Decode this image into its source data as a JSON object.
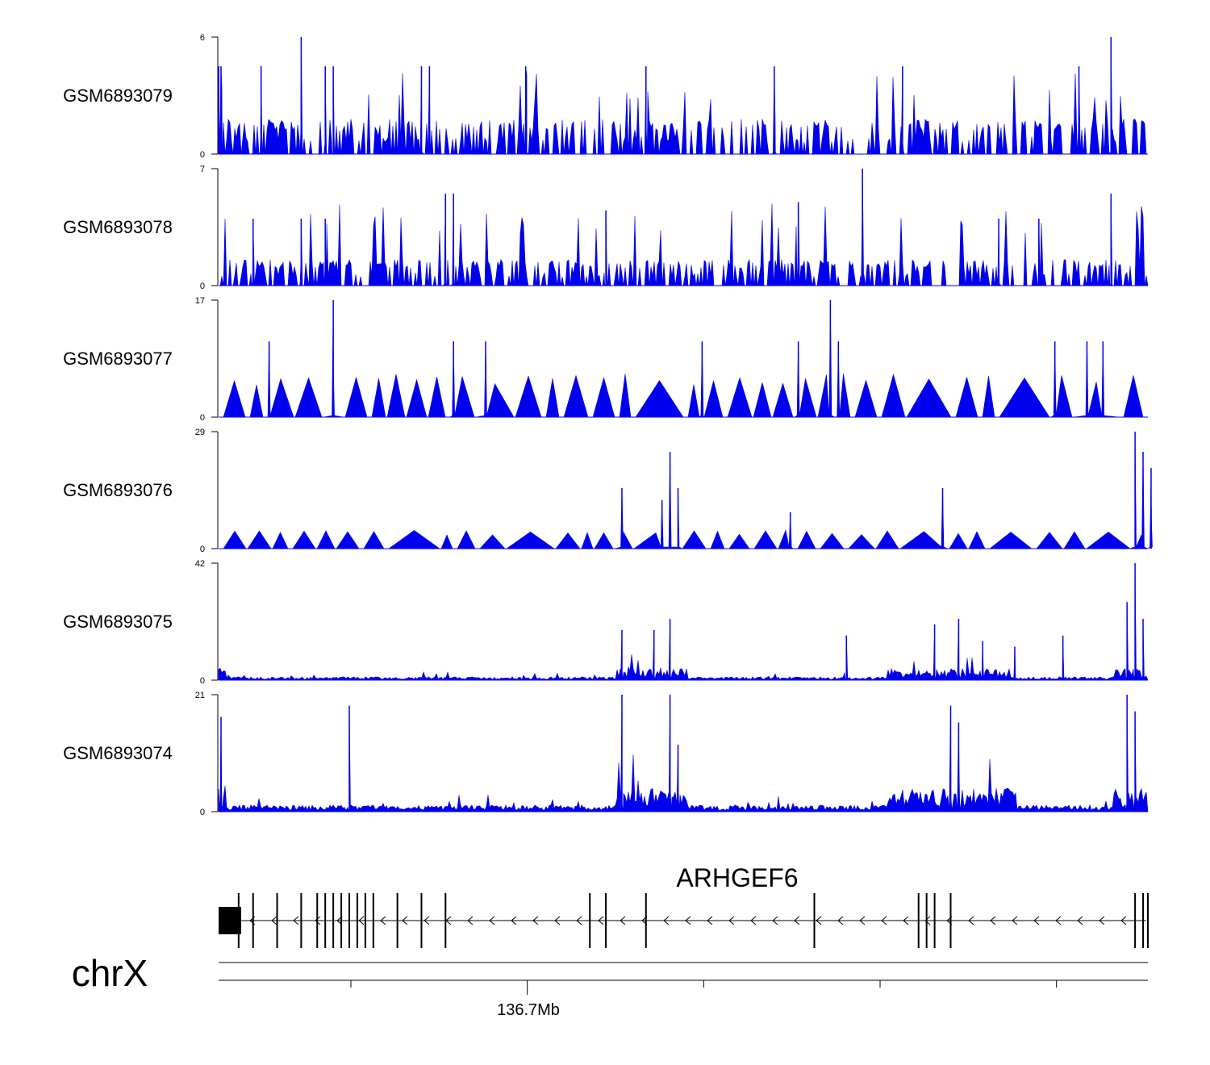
{
  "chart_data": {
    "type": "area",
    "chromosome": "chrX",
    "gene": "ARHGEF6",
    "axis_label": "136.7Mb",
    "x_range_mb": [
      136.6275,
      136.7434
    ],
    "x_ticks_mb": [
      136.644,
      136.666,
      136.688,
      136.71,
      136.732
    ],
    "series_color": "#0000ee",
    "tracks": [
      {
        "name": "GSM6893079",
        "ymax": 6,
        "ymin": 0,
        "pattern": "sparse_spiky",
        "peaks": [
          [
            136.6275,
            4.5
          ],
          [
            136.6275,
            4.5
          ],
          [
            136.6278,
            4.5
          ],
          [
            136.6328,
            4.5
          ],
          [
            136.6378,
            6
          ],
          [
            136.6408,
            4.5
          ],
          [
            136.6418,
            4.5
          ],
          [
            136.6528,
            4.5
          ],
          [
            136.6538,
            4.5
          ],
          [
            136.6658,
            4.5
          ],
          [
            136.6808,
            4.5
          ],
          [
            136.6968,
            4.5
          ],
          [
            136.7128,
            4.5
          ],
          [
            136.7348,
            4.5
          ],
          [
            136.7388,
            6
          ]
        ],
        "base_level": 1.5
      },
      {
        "name": "GSM6893078",
        "ymax": 7,
        "ymin": 0,
        "pattern": "sparse_spiky",
        "peaks": [
          [
            136.6558,
            5.5
          ],
          [
            136.6568,
            5.5
          ],
          [
            136.6758,
            4.5
          ],
          [
            136.6998,
            5
          ],
          [
            136.7078,
            7
          ],
          [
            136.7388,
            5.5
          ],
          [
            136.6318,
            4
          ],
          [
            136.6378,
            4
          ],
          [
            136.6408,
            4
          ],
          [
            136.7248,
            4
          ],
          [
            136.7298,
            4
          ]
        ],
        "base_level": 1.3
      },
      {
        "name": "GSM6893077",
        "ymax": 17,
        "ymin": 0,
        "pattern": "triangles",
        "peaks": [
          [
            136.6338,
            11
          ],
          [
            136.6418,
            17
          ],
          [
            136.6568,
            11
          ],
          [
            136.6608,
            11
          ],
          [
            136.6878,
            11
          ],
          [
            136.6998,
            11
          ],
          [
            136.7038,
            17
          ],
          [
            136.7048,
            11
          ],
          [
            136.7318,
            11
          ],
          [
            136.7358,
            11
          ],
          [
            136.7378,
            11
          ]
        ],
        "base_level": 5.5
      },
      {
        "name": "GSM6893076",
        "ymax": 29,
        "ymin": 0,
        "pattern": "triangles",
        "peaks": [
          [
            136.6778,
            15
          ],
          [
            136.6828,
            12
          ],
          [
            136.6838,
            24
          ],
          [
            136.6848,
            15
          ],
          [
            136.6988,
            9
          ],
          [
            136.7178,
            15
          ],
          [
            136.7418,
            29
          ],
          [
            136.7428,
            24
          ],
          [
            136.7438,
            20
          ],
          [
            136.7438,
            10
          ]
        ],
        "base_level": 4
      },
      {
        "name": "GSM6893075",
        "ymax": 42,
        "ymin": 0,
        "pattern": "dense",
        "peaks": [
          [
            136.6778,
            18
          ],
          [
            136.6818,
            18
          ],
          [
            136.6838,
            22
          ],
          [
            136.7058,
            16
          ],
          [
            136.7168,
            20
          ],
          [
            136.7198,
            22
          ],
          [
            136.7228,
            14
          ],
          [
            136.7268,
            12
          ],
          [
            136.7328,
            16
          ],
          [
            136.7408,
            28
          ],
          [
            136.7418,
            42
          ],
          [
            136.7428,
            22
          ]
        ],
        "base_level": 2
      },
      {
        "name": "GSM6893074",
        "ymax": 21,
        "ymin": 0,
        "pattern": "dense",
        "peaks": [
          [
            136.6278,
            17
          ],
          [
            136.6438,
            19
          ],
          [
            136.6778,
            21
          ],
          [
            136.6838,
            21
          ],
          [
            136.6848,
            12
          ],
          [
            136.7188,
            19
          ],
          [
            136.7198,
            16
          ],
          [
            136.7408,
            21
          ],
          [
            136.7418,
            18
          ]
        ],
        "base_level": 2
      }
    ],
    "gene_model": {
      "strand": "-",
      "exons_mb": [
        136.63,
        136.6318,
        136.6348,
        136.6378,
        136.6398,
        136.6408,
        136.6418,
        136.6428,
        136.6438,
        136.6448,
        136.6458,
        136.6468,
        136.6498,
        136.6528,
        136.6558,
        136.6738,
        136.6758,
        136.6808,
        136.7018,
        136.7148,
        136.7158,
        136.7168,
        136.7188,
        136.7418,
        136.7428,
        136.7434
      ]
    }
  }
}
